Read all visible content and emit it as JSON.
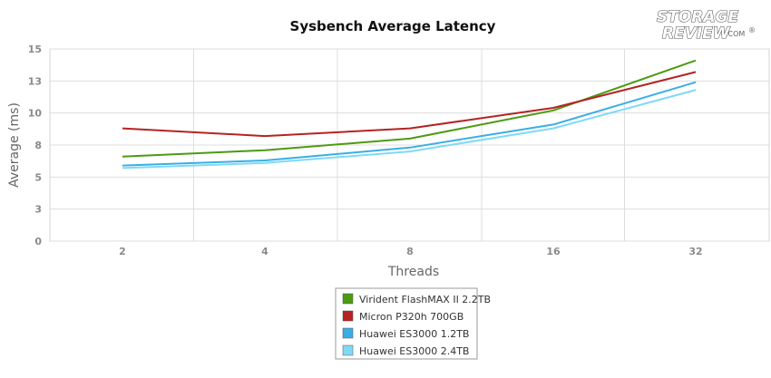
{
  "logo": {
    "line1": "STORAGE",
    "line2": "REVIEW",
    "suffix": ".COM",
    "mark": "®"
  },
  "chart_data": {
    "type": "line",
    "title": "Sysbench Average Latency",
    "xlabel": "Threads",
    "ylabel": "Average (ms)",
    "categories": [
      "2",
      "4",
      "8",
      "16",
      "32"
    ],
    "ylim": [
      0,
      15
    ],
    "yticks": [
      0,
      2.5,
      5,
      7.5,
      10,
      12.5,
      15
    ],
    "ytick_labels": [
      "0",
      "3",
      "5",
      "8",
      "10",
      "13",
      "15"
    ],
    "grid": true,
    "legend_position": "bottom-center",
    "series": [
      {
        "name": "Virident FlashMAX II 2.2TB",
        "color": "#4c9a12",
        "values": [
          6.6,
          7.1,
          8.0,
          10.2,
          14.1
        ]
      },
      {
        "name": "Micron P320h 700GB",
        "color": "#b52323",
        "values": [
          8.8,
          8.2,
          8.8,
          10.4,
          13.2
        ]
      },
      {
        "name": "Huawei ES3000 1.2TB",
        "color": "#3aaee5",
        "values": [
          5.9,
          6.3,
          7.3,
          9.1,
          12.4
        ]
      },
      {
        "name": "Huawei ES3000 2.4TB",
        "color": "#7fd9f7",
        "values": [
          5.7,
          6.1,
          7.0,
          8.8,
          11.8
        ]
      }
    ]
  }
}
